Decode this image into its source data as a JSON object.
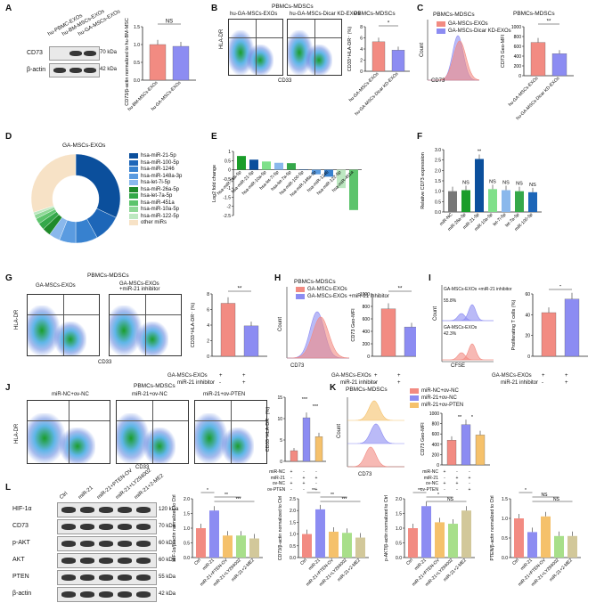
{
  "panels": {
    "A": {
      "letter": "A",
      "samples": [
        "hu-PBMC-EXOs",
        "hu-BM-MSCs-EXOs",
        "hu-GA-MSCs-EXOs"
      ],
      "blot_labels": [
        "CD73",
        "β-actin"
      ],
      "kda": [
        "70 kDa",
        "42 kDa"
      ],
      "chart_ylabel": "CD73/β-actin normalized to hu-BM-MSCs-EXOs",
      "sig": "NS",
      "categories": [
        "hu-BM-MSCs-EXOs",
        "hu-GA-MSCs-EXOs"
      ],
      "values": [
        1.0,
        0.95
      ],
      "colors": [
        "#f28b82",
        "#8c8cf2"
      ]
    },
    "B": {
      "letter": "B",
      "title": "PBMCs-MDSCs",
      "flow_titles": [
        "hu-GA-MSCs-EXOs",
        "hu-GA-MSCs-Dicar KD-EXOs"
      ],
      "xaxis": "CD33",
      "yaxis": "HLA-DR",
      "chart_title": "PBMCs-MDSCs",
      "chart_ylabel": "CD33⁺HLA-DR⁻ (%)",
      "sig": "*",
      "categories": [
        "hu-GA-MSCs-EXOs",
        "hu-GA-MSCs-Dicar KD-EXOs"
      ],
      "values": [
        5.3,
        3.8
      ]
    },
    "C": {
      "letter": "C",
      "hist_title": "PBMCs-MDSCs",
      "legend": [
        "GA-MSCs-EXOs",
        "GA-MSCs-Dicar KD-EXOs"
      ],
      "xaxis": "CD73",
      "yaxis": "Count",
      "chart_title": "PBMCs-MDSCs",
      "chart_ylabel": "CD73 Geo-MFI",
      "sig": "**",
      "categories": [
        "hu-GA-MSCs-EXOs",
        "hu-GA-MSCs-Dicar KD-EXOs"
      ],
      "values": [
        680,
        450
      ]
    },
    "D": {
      "letter": "D",
      "title": "GA-MSCs-EXOs",
      "legend": [
        "hsa-miR-21-5p",
        "hsa-miR-100-5p",
        "hsa-miR-1246",
        "hsa-miR-148a-3p",
        "hsa-let-7i-5p",
        "hsa-miR-26a-5p",
        "hsa-let-7a-5p",
        "hsa-miR-451a",
        "hsa-miR-10a-5p",
        "hsa-miR-122-5p",
        "other miRs"
      ],
      "colors": [
        "#0b4f9c",
        "#1d66b8",
        "#3781cf",
        "#5a9be0",
        "#8ab8ec",
        "#1f8a2a",
        "#35a84a",
        "#5cc46c",
        "#8ed896",
        "#bde8c1",
        "#f7e2c6"
      ],
      "values": [
        32,
        10,
        8,
        6,
        4,
        3,
        2.5,
        2,
        1.5,
        1,
        30
      ]
    },
    "E": {
      "letter": "E",
      "ylabel": "Log2 fold change",
      "categories": [
        "hsa-miR-26a-5p",
        "hsa-miR-21-5p",
        "hsa-miR-10a-5p",
        "hsa-let-7i-5p",
        "hsa-let-7a-5p",
        "hsa-miR-100-5p",
        "hsa-miR-148a-3p",
        "hsa-miR-1246",
        "hsa-miR-122-5p",
        "hsa-miR-451a"
      ],
      "values": [
        0.75,
        0.55,
        0.45,
        0.38,
        0.36,
        0.02,
        -0.25,
        -0.38,
        -1.0,
        -2.2
      ],
      "colors": [
        "#1a9d2a",
        "#0b4f9c",
        "#7fe08a",
        "#8ab8ec",
        "#35a84a",
        "#1d66b8",
        "#5a9be0",
        "#3781cf",
        "#bde8c1",
        "#5cc46c"
      ],
      "yticks": [
        "1",
        "0.5",
        "0",
        "-0.5",
        "-1",
        "-1.5",
        "-2",
        "-2.5"
      ]
    },
    "F": {
      "letter": "F",
      "ylabel": "Relative CD73 expression",
      "categories": [
        "miR-NC",
        "miR-26a-5p",
        "miR-21-5p",
        "miR-10a-5p",
        "let-7i-5p",
        "let-7a-5p",
        "miR-100-5p"
      ],
      "values": [
        1.0,
        1.05,
        2.55,
        1.1,
        1.05,
        1.0,
        0.95
      ],
      "sig": [
        "",
        "NS",
        "**",
        "NS",
        "NS",
        "NS",
        "NS"
      ],
      "colors": [
        "#777777",
        "#1a9d2a",
        "#0b4f9c",
        "#7fe08a",
        "#8ab8ec",
        "#35a84a",
        "#1d66b8"
      ],
      "yticks": [
        "0.0",
        "0.5",
        "1.0",
        "1.5",
        "2.0",
        "2.5",
        "3.0"
      ]
    },
    "G": {
      "letter": "G",
      "title": "PBMCs-MDSCs",
      "flow_titles": [
        "GA-MSCs-EXOs",
        "GA-MSCs-EXOs\n+miR-21 inhibitor"
      ],
      "flow_title_a": "GA-MSCs-EXOs",
      "flow_title_b1": "GA-MSCs-EXOs",
      "flow_title_b2": "+miR-21 inhibitor",
      "xaxis": "CD33",
      "yaxis": "HLA-DR",
      "chart_ylabel": "CD33⁺HLA-DR⁻ (%)",
      "sig": "**",
      "values": [
        6.8,
        3.9
      ],
      "rows": [
        "GA-MSCs-EXOs",
        "miR-21 inhibitor"
      ],
      "row_signs": [
        [
          "+",
          "+"
        ],
        [
          "-",
          "+"
        ]
      ]
    },
    "H": {
      "letter": "H",
      "hist_title": "PBMCs-MDSCs",
      "legend": [
        "GA-MSCs-EXOs",
        "GA-MSCs-EXOs +miR-21 inhibitor"
      ],
      "xaxis": "CD73",
      "yaxis": "Count",
      "chart_ylabel": "CD73 Geo-MFI",
      "sig": "**",
      "values": [
        760,
        470
      ],
      "rows": [
        "GA-MSCs-EXOs",
        "miR-21 inhibitor"
      ],
      "row_signs": [
        [
          "+",
          "+"
        ],
        [
          "-",
          "+"
        ]
      ]
    },
    "I": {
      "letter": "I",
      "hist_labels": [
        "GA-MSCs-EXOs +miR-21 inhibitor",
        "GA-MSCs-EXOs"
      ],
      "pct": [
        "55.8%",
        "42.3%"
      ],
      "xaxis": "CFSE",
      "yaxis": "Count",
      "chart_ylabel": "Proliferating T cells (%)",
      "sig": "*",
      "values": [
        42,
        55
      ],
      "rows": [
        "GA-MSCs-EXOs",
        "miR-21 inhibitor"
      ],
      "row_signs": [
        [
          "+",
          "+"
        ],
        [
          "-",
          "+"
        ]
      ]
    },
    "J": {
      "letter": "J",
      "title": "PBMCs-MDSCs",
      "flow_titles": [
        "miR-NC+ov-NC",
        "miR-21+ov-NC",
        "miR-21+ov-PTEN"
      ],
      "xaxis": "CD33",
      "yaxis": "HLA-DR",
      "chart_ylabel": "CD33⁺HLA-DR⁻ (%)",
      "sig": [
        "***",
        "***"
      ],
      "values": [
        2.5,
        10.2,
        5.8
      ],
      "colors": [
        "#f28b82",
        "#8c8cf2",
        "#f5c16b"
      ],
      "rows": [
        "miR-NC",
        "miR-21",
        "ov-NC",
        "ov-PTEN"
      ],
      "row_signs": [
        [
          "+",
          "-",
          "-"
        ],
        [
          "-",
          "+",
          "+"
        ],
        [
          "+",
          "+",
          "-"
        ],
        [
          "-",
          "-",
          "+"
        ]
      ]
    },
    "K": {
      "letter": "K",
      "hist_title": "PBMCs-MDSCs",
      "legend": [
        "miR-NC+ov-NC",
        "miR-21+ov-NC",
        "miR-21+ov-PTEN"
      ],
      "xaxis": "CD73",
      "yaxis": "Count",
      "chart_ylabel": "CD73 Geo-MFI",
      "sig": [
        "**",
        "*"
      ],
      "values": [
        480,
        780,
        580
      ],
      "rows": [
        "miR-NC",
        "miR-21",
        "ov-NC",
        "ov-PTEN"
      ],
      "row_signs": [
        [
          "+",
          "-",
          "-"
        ],
        [
          "-",
          "+",
          "+"
        ],
        [
          "+",
          "+",
          "-"
        ],
        [
          "-",
          "-",
          "+"
        ]
      ]
    },
    "L": {
      "letter": "L",
      "lanes": [
        "Ctrl",
        "miR-21",
        "miR-21+PTEN-OV",
        "miR-21+LY294002",
        "miR-21+2-ME2"
      ],
      "proteins": [
        "HIF-1α",
        "CD73",
        "p-AKT",
        "AKT",
        "PTEN",
        "β-actin"
      ],
      "kda": [
        "120 kDa",
        "70 kDa",
        "60 kDa",
        "60 kDa",
        "55 kDa",
        "42 kDa"
      ],
      "charts": [
        {
          "ylabel": "HIF-1α/β-actin normalized to Ctrl",
          "values": [
            1.0,
            1.6,
            0.75,
            0.75,
            0.65
          ],
          "sig": [
            "*",
            "**",
            "***"
          ],
          "yticks": [
            "0.0",
            "0.5",
            "1.0",
            "1.5",
            "2.0"
          ]
        },
        {
          "ylabel": "CD73/β-actin normalized to Ctrl",
          "values": [
            1.0,
            2.05,
            1.1,
            1.05,
            0.85
          ],
          "sig": [
            "**",
            "**",
            "***"
          ],
          "yticks": [
            "0.0",
            "0.5",
            "1.0",
            "1.5",
            "2.0",
            "2.5"
          ]
        },
        {
          "ylabel": "p-AKT/β-actin normalized to Ctrl",
          "values": [
            1.0,
            1.75,
            1.2,
            1.15,
            1.6
          ],
          "sig": [
            "**",
            "*",
            "NS"
          ],
          "yticks": [
            "0.0",
            "0.5",
            "1.0",
            "1.5",
            "2.0"
          ]
        },
        {
          "ylabel": "PTEN/β-actin normalized to Ctrl",
          "values": [
            1.0,
            0.65,
            1.05,
            0.55,
            0.55
          ],
          "sig": [
            "*",
            "NS",
            "NS"
          ],
          "yticks": [
            "0.0",
            "0.5",
            "1.0",
            "1.5"
          ]
        }
      ],
      "colors": [
        "#f28b82",
        "#8c8cf2",
        "#f5c16b",
        "#a8df8a",
        "#d2c89a"
      ],
      "tick_labels": [
        "Ctrl",
        "miR-21",
        "miR-21+PTEN-OV",
        "miR-21+LY294002",
        "miR-21+2-ME2"
      ]
    }
  }
}
